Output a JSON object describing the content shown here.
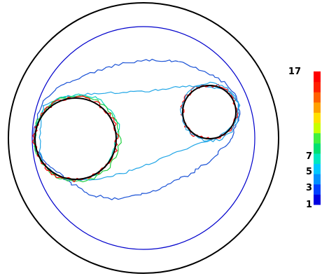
{
  "colorbar": {
    "ticks": [
      "17",
      "7",
      "5",
      "3",
      "1"
    ],
    "colors": [
      "#0000e0",
      "#0040ff",
      "#0090ff",
      "#00c8ff",
      "#00e8c0",
      "#00e070",
      "#40f040",
      "#c8ff00",
      "#ffe000",
      "#ffa000",
      "#ff6000",
      "#ff2000",
      "#ff0000"
    ]
  },
  "colors": {
    "outer_circle": "#000000",
    "inner_circle": "#0000cc",
    "holes": "#000000",
    "level_1": "#1a52d6",
    "level_3": "#22a6e6",
    "level_5": "#10d8c0",
    "level_7": "#20d040",
    "level_17": "#ff0000"
  }
}
